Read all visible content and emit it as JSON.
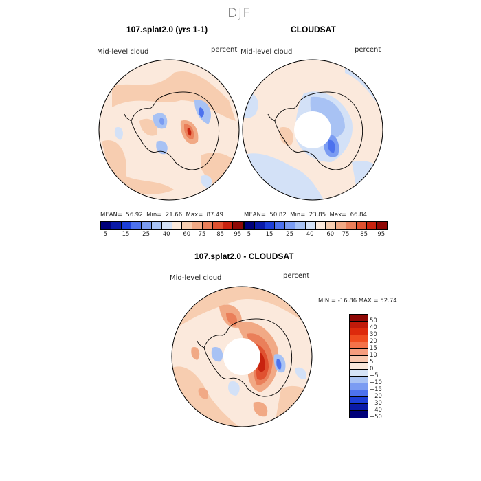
{
  "season": "DJF",
  "panels": {
    "model": {
      "title": "107.splat2.0 (yrs 1-1)",
      "field": "Mid-level cloud",
      "units": "percent",
      "mean_label": "MEAN=",
      "mean": "56.92",
      "min_label": "Min=",
      "min": "21.66",
      "max_label": "Max=",
      "max": "87.49"
    },
    "obs": {
      "title": "CLOUDSAT",
      "field": "Mid-level cloud",
      "units": "percent",
      "mean_label": "MEAN=",
      "mean": "50.82",
      "min_label": "Min=",
      "min": "23.85",
      "max_label": "Max=",
      "max": "66.84"
    },
    "diff": {
      "title": "107.splat2.0 - CLOUDSAT",
      "field": "Mid-level cloud",
      "units": "percent",
      "range_text": "MIN = -16.86 MAX =  52.74"
    }
  },
  "colorbar_abs": {
    "colors": [
      "#00007a",
      "#0a1aa8",
      "#1d3fd8",
      "#4d72ee",
      "#7b9cf2",
      "#a8c2f4",
      "#d3e1f7",
      "#fbe9dc",
      "#f7cdb0",
      "#f1a985",
      "#ea7f5a",
      "#e05130",
      "#c8230f",
      "#8f0805"
    ],
    "ticks": [
      "5",
      "15",
      "25",
      "40",
      "60",
      "75",
      "85",
      "95"
    ]
  },
  "colorbar_diff": {
    "colors": [
      "#8f0805",
      "#c11a0a",
      "#dd2a0c",
      "#ef4c1f",
      "#f4724a",
      "#f69d7e",
      "#f9c7ae",
      "#fbe9dc",
      "#d6e4f7",
      "#a9c3f4",
      "#7b9cf2",
      "#4d72ee",
      "#1d3fd8",
      "#0a1aa8",
      "#00007a"
    ],
    "ticks": [
      "50",
      "40",
      "30",
      "20",
      "15",
      "10",
      "5",
      "0",
      "−5",
      "−10",
      "−15",
      "−20",
      "−30",
      "−40",
      "−50"
    ]
  }
}
